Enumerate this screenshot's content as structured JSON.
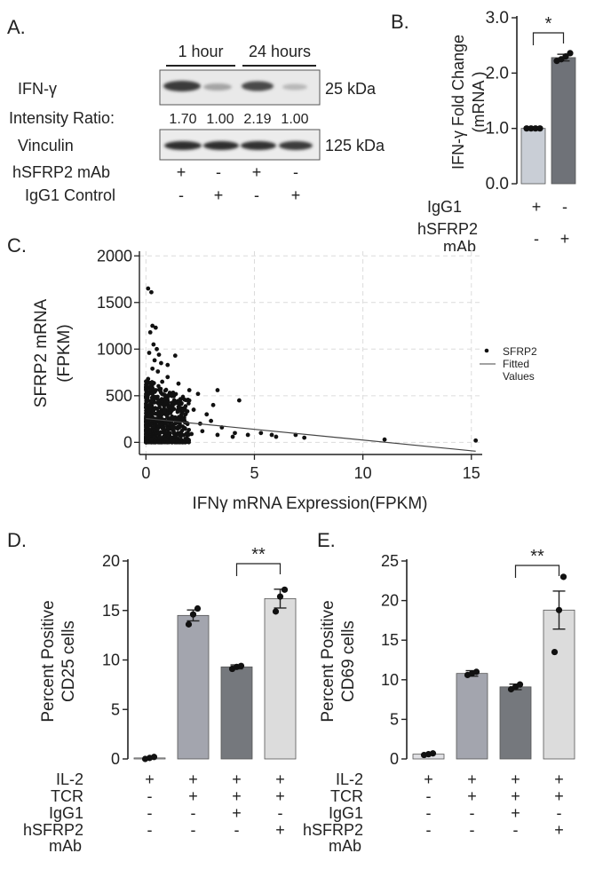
{
  "panel_a": {
    "letter": "A.",
    "time_labels": [
      "1 hour",
      "24 hours"
    ],
    "ifn_label": "IFN-γ",
    "ifn_kda": "25 kDa",
    "intensity_label": "Intensity Ratio:",
    "ratios": [
      "1.70",
      "1.00",
      "2.19",
      "1.00"
    ],
    "vinculin_label": "Vinculin",
    "vinculin_kda": "125 kDa",
    "treatments": [
      {
        "name": "hSFRP2 mAb",
        "signs": [
          "+",
          "-",
          "+",
          "-"
        ]
      },
      {
        "name": "IgG1 Control",
        "signs": [
          "-",
          "+",
          "-",
          "+"
        ]
      }
    ]
  },
  "panel_b": {
    "letter": "B.",
    "ylabel_line1": "IFN-γ Fold Change",
    "ylabel_line2": "(mRNA )",
    "sig": "*",
    "rows": [
      {
        "label": "IgG1",
        "signs": [
          "+",
          "-"
        ]
      },
      {
        "label": "hSFRP2",
        "label2": "mAb",
        "signs": [
          "-",
          "+"
        ]
      }
    ]
  },
  "panel_c": {
    "letter": "C.",
    "ylabel_line1": "SFRP2 mRNA",
    "ylabel_line2": "(FPKM)",
    "xlabel": "IFNγ mRNA Expression(FPKM)",
    "legend": {
      "points": "SFRP2",
      "line1": "Fitted",
      "line2": "Values"
    }
  },
  "panel_d": {
    "letter": "D.",
    "ylabel_line1": "Percent Positive",
    "ylabel_line2": "CD25 cells",
    "sig": "**"
  },
  "panel_e": {
    "letter": "E.",
    "ylabel_line1": "Percent Positive",
    "ylabel_line2": "CD69 cells",
    "sig": "**"
  },
  "condition_rows": [
    {
      "label": "IL-2",
      "signs": [
        "+",
        "+",
        "+",
        "+"
      ]
    },
    {
      "label": "TCR",
      "signs": [
        "-",
        "+",
        "+",
        "+"
      ]
    },
    {
      "label": "IgG1",
      "signs": [
        "-",
        "-",
        "+",
        "-"
      ]
    },
    {
      "label": "hSFRP2",
      "label2": "mAb",
      "signs": [
        "-",
        "-",
        "-",
        "+"
      ]
    }
  ],
  "chart_data": [
    {
      "panel": "B",
      "type": "bar",
      "categories": [
        "IgG1",
        "hSFRP2 mAb"
      ],
      "values": [
        1.0,
        2.28
      ],
      "errors": [
        0.01,
        0.06
      ],
      "points": [
        [
          1.0,
          1.0,
          1.0,
          1.0
        ],
        [
          2.22,
          2.25,
          2.3,
          2.36
        ]
      ],
      "colors": [
        "#c9ced6",
        "#6f7278"
      ],
      "ylim": [
        0,
        3
      ],
      "yticks": [
        0.0,
        1.0,
        2.0,
        3.0
      ],
      "tick_labels": [
        "0.0",
        "1.0",
        "2.0",
        "3.0"
      ]
    },
    {
      "panel": "C",
      "type": "scatter",
      "xlim": [
        -0.3,
        15.5
      ],
      "ylim": [
        -130,
        2050
      ],
      "xticks": [
        0,
        5,
        10,
        15
      ],
      "yticks": [
        0,
        500,
        1000,
        1500,
        2000
      ],
      "points": [
        [
          0.1,
          1650
        ],
        [
          0.25,
          1610
        ],
        [
          0.3,
          1250
        ],
        [
          0.45,
          1230
        ],
        [
          0.2,
          1180
        ],
        [
          0.35,
          1050
        ],
        [
          0.5,
          1000
        ],
        [
          0.15,
          960
        ],
        [
          0.6,
          940
        ],
        [
          1.35,
          930
        ],
        [
          0.4,
          880
        ],
        [
          0.7,
          850
        ],
        [
          1.0,
          830
        ],
        [
          0.3,
          790
        ],
        [
          0.55,
          760
        ],
        [
          1.0,
          700
        ],
        [
          0.1,
          680
        ],
        [
          0.75,
          650
        ],
        [
          0.2,
          600
        ],
        [
          1.5,
          630
        ],
        [
          3.3,
          560
        ],
        [
          0.45,
          560
        ],
        [
          2.0,
          560
        ],
        [
          0.3,
          520
        ],
        [
          2.4,
          520
        ],
        [
          1.2,
          500
        ],
        [
          3.1,
          400
        ],
        [
          4.3,
          450
        ],
        [
          0.6,
          450
        ],
        [
          2.2,
          350
        ],
        [
          1.5,
          380
        ],
        [
          0.9,
          420
        ],
        [
          2.8,
          300
        ],
        [
          1.7,
          250
        ],
        [
          3.0,
          230
        ],
        [
          2.5,
          200
        ],
        [
          3.5,
          160
        ],
        [
          4.1,
          100
        ],
        [
          4.0,
          60
        ],
        [
          4.7,
          80
        ],
        [
          5.8,
          80
        ],
        [
          5.3,
          100
        ],
        [
          6.0,
          60
        ],
        [
          6.9,
          80
        ],
        [
          7.3,
          50
        ],
        [
          3.3,
          80
        ],
        [
          2.6,
          120
        ],
        [
          11.0,
          30
        ],
        [
          15.2,
          20
        ],
        [
          1.0,
          300
        ],
        [
          0.5,
          250
        ],
        [
          1.8,
          150
        ],
        [
          2.1,
          90
        ]
      ],
      "dense_cloud": {
        "x_range": [
          0,
          2.0
        ],
        "y_range": [
          0,
          700
        ]
      },
      "fit": {
        "x": [
          0,
          15.2
        ],
        "y": [
          255,
          -95
        ]
      }
    },
    {
      "panel": "D",
      "type": "bar",
      "categories": [
        "IL-2",
        "IL-2 + TCR",
        "IL-2 + TCR + IgG1",
        "IL-2 + TCR + hSFRP2 mAb"
      ],
      "values": [
        0.1,
        14.5,
        9.3,
        16.2
      ],
      "errors": [
        0.05,
        0.55,
        0.2,
        0.95
      ],
      "points": [
        [
          0.0,
          0.1,
          0.2
        ],
        [
          13.6,
          14.6,
          15.2
        ],
        [
          9.1,
          9.3,
          9.4
        ],
        [
          14.9,
          16.4,
          17.1
        ]
      ],
      "colors": [
        "#e0e0e4",
        "#a3a5ae",
        "#75787d",
        "#dcdcdc"
      ],
      "ylim": [
        0,
        20
      ],
      "yticks": [
        0,
        5,
        10,
        15,
        20
      ],
      "tick_labels": [
        "0",
        "5",
        "10",
        "15",
        "20"
      ]
    },
    {
      "panel": "E",
      "type": "bar",
      "categories": [
        "IL-2",
        "IL-2 + TCR",
        "IL-2 + TCR + IgG1",
        "IL-2 + TCR + hSFRP2 mAb"
      ],
      "values": [
        0.6,
        10.8,
        9.1,
        18.8
      ],
      "errors": [
        0.1,
        0.35,
        0.35,
        2.4
      ],
      "points": [
        [
          0.5,
          0.6,
          0.7
        ],
        [
          10.6,
          10.8,
          11.0
        ],
        [
          8.8,
          9.1,
          9.4
        ],
        [
          13.5,
          18.8,
          23.0
        ]
      ],
      "colors": [
        "#e0e0e4",
        "#a3a5ae",
        "#75787d",
        "#dcdcdc"
      ],
      "ylim": [
        0,
        25
      ],
      "yticks": [
        0,
        5,
        10,
        15,
        20,
        25
      ],
      "tick_labels": [
        "0",
        "5",
        "10",
        "15",
        "20",
        "25"
      ]
    }
  ]
}
